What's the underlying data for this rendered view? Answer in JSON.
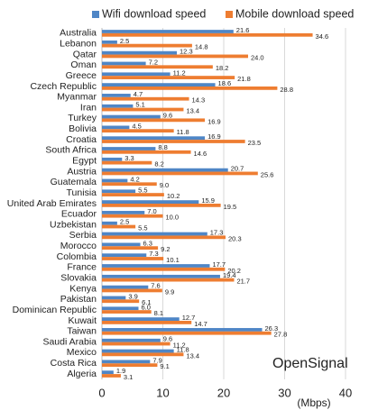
{
  "chart_data": {
    "type": "bar",
    "orientation": "horizontal",
    "categories": [
      "Australia",
      "Lebanon",
      "Qatar",
      "Oman",
      "Greece",
      "Czech Republic",
      "Myanmar",
      "Iran",
      "Turkey",
      "Bolivia",
      "Croatia",
      "South Africa",
      "Egypt",
      "Austria",
      "Guatemala",
      "Tunisia",
      "United Arab Emirates",
      "Ecuador",
      "Uzbekistan",
      "Serbia",
      "Morocco",
      "Colombia",
      "France",
      "Slovakia",
      "Kenya",
      "Pakistan",
      "Dominican Republic",
      "Kuwait",
      "Taiwan",
      "Saudi Arabia",
      "Mexico",
      "Costa Rica",
      "Algeria"
    ],
    "series": [
      {
        "name": "Wifi download speed",
        "color": "#4f86c6",
        "values": [
          21.6,
          2.5,
          12.3,
          7.2,
          11.2,
          18.6,
          4.7,
          5.1,
          9.6,
          4.5,
          16.9,
          8.8,
          3.3,
          20.7,
          4.2,
          5.5,
          15.9,
          7.0,
          2.5,
          17.3,
          6.3,
          7.3,
          17.7,
          19.4,
          7.6,
          3.9,
          6.0,
          12.7,
          26.3,
          9.6,
          11.8,
          7.9,
          1.9
        ],
        "value_labels": [
          "21.6",
          "2.5",
          "12.3",
          "7.2",
          "11.2",
          "18.6",
          "4.7",
          "5.1",
          "9.6",
          "4.5",
          "16.9",
          "8.8",
          "3.3",
          "20.7",
          "4.2",
          "5.5",
          "15.9",
          "7.0",
          "2.5",
          "17.3",
          "6.3",
          "7.3",
          "17.7",
          "19.4",
          "7.6",
          "3.9",
          "6.0",
          "12.7",
          "26.3",
          "9.6",
          "11.8",
          "7.9",
          "1.9"
        ]
      },
      {
        "name": "Mobile download speed",
        "color": "#ee7d31",
        "values": [
          34.6,
          14.8,
          24.0,
          18.2,
          21.8,
          28.8,
          14.3,
          13.4,
          16.9,
          11.8,
          23.5,
          14.6,
          8.2,
          25.6,
          9.0,
          10.2,
          19.5,
          10.0,
          5.5,
          20.3,
          9.2,
          10.1,
          20.2,
          21.7,
          9.9,
          6.1,
          8.1,
          14.7,
          27.8,
          11.2,
          13.4,
          9.1,
          3.1
        ],
        "value_labels": [
          "34.6",
          "14.8",
          "24.0",
          "18.2",
          "21.8",
          "28.8",
          "14.3",
          "13.4",
          "16.9",
          "11.8",
          "23.5",
          "14.6",
          "8.2",
          "25.6",
          "9.0",
          "10.2",
          "19.5",
          "10.0",
          "5.5",
          "20.3",
          "9.2",
          "10.1",
          "20.2",
          "21.7",
          "9.9",
          "6.1",
          "8.1",
          "14.7",
          "27.8",
          "11.2",
          "13.4",
          "9.1",
          "3.1"
        ]
      }
    ],
    "xlim": [
      0,
      40
    ],
    "xticks": [
      0,
      10,
      20,
      30,
      40
    ],
    "x_label": "(Mbps)",
    "grid": true,
    "legend": "top",
    "watermark": "OpenSignal"
  }
}
